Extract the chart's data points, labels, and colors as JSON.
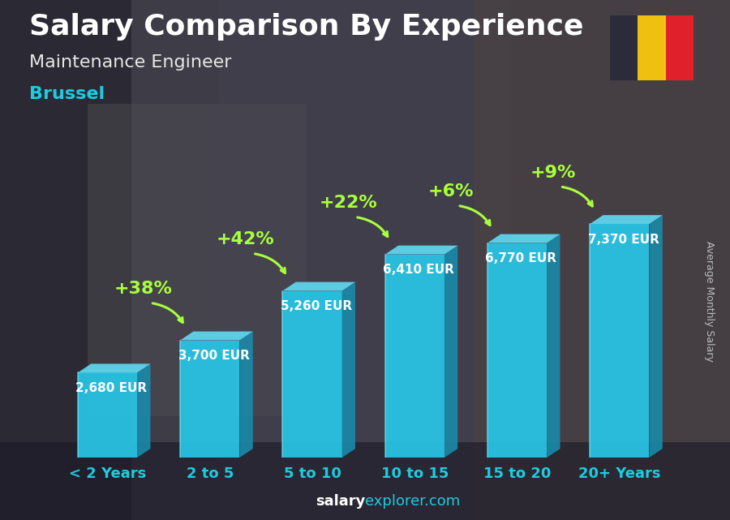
{
  "title": "Salary Comparison By Experience",
  "subtitle": "Maintenance Engineer",
  "city": "Brussel",
  "ylabel": "Average Monthly Salary",
  "footer_bold": "salary",
  "footer_normal": "explorer.com",
  "categories": [
    "< 2 Years",
    "2 to 5",
    "5 to 10",
    "10 to 15",
    "15 to 20",
    "20+ Years"
  ],
  "values": [
    2680,
    3700,
    5260,
    6410,
    6770,
    7370
  ],
  "labels": [
    "2,680 EUR",
    "3,700 EUR",
    "5,260 EUR",
    "6,410 EUR",
    "6,770 EUR",
    "7,370 EUR"
  ],
  "pct_labels": [
    "+38%",
    "+42%",
    "+22%",
    "+6%",
    "+9%"
  ],
  "bar_front_color": "#29c5e6",
  "bar_right_color": "#1a8aaa",
  "bar_top_color": "#60d8f0",
  "bg_color": "#5a6070",
  "bg_overlay_color": "#3a3d4a",
  "title_color": "#ffffff",
  "subtitle_color": "#e8e8e8",
  "city_color": "#1ecbe1",
  "label_color": "#ffffff",
  "pct_color": "#a8ff3e",
  "tick_color": "#1ecbe1",
  "ylabel_color": "#bbbbbb",
  "flag_colors": [
    "#2b2b3b",
    "#f0c010",
    "#e0202a"
  ],
  "title_fontsize": 26,
  "subtitle_fontsize": 16,
  "city_fontsize": 16,
  "label_fontsize": 11,
  "pct_fontsize": 16,
  "tick_fontsize": 13,
  "footer_fontsize": 13
}
